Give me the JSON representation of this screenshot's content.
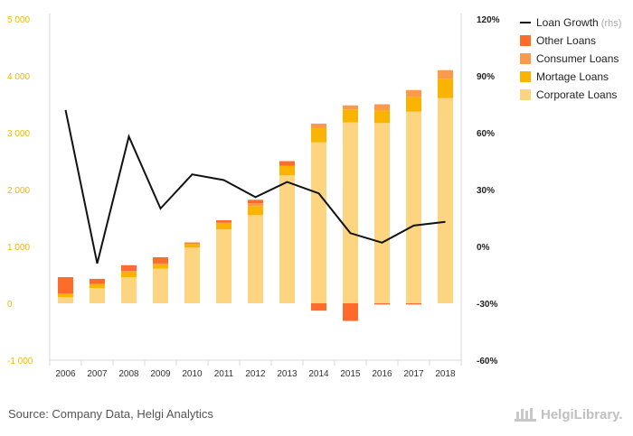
{
  "chart_data": {
    "type": "bar",
    "stacked": true,
    "categories": [
      "2006",
      "2007",
      "2008",
      "2009",
      "2010",
      "2011",
      "2012",
      "2013",
      "2014",
      "2015",
      "2016",
      "2017",
      "2018"
    ],
    "series": [
      {
        "name": "Corporate Loans",
        "axis": "left",
        "color": "#fdd580",
        "values": [
          110,
          270,
          460,
          610,
          980,
          1300,
          1550,
          2250,
          2830,
          3180,
          3170,
          3370,
          3610
        ]
      },
      {
        "name": "Mortage Loans",
        "axis": "left",
        "color": "#fab400",
        "values": [
          60,
          70,
          80,
          70,
          60,
          100,
          160,
          170,
          250,
          230,
          220,
          260,
          340
        ]
      },
      {
        "name": "Consumer Loans",
        "axis": "left",
        "color": "#fb9a4b",
        "values": [
          0,
          0,
          30,
          20,
          10,
          20,
          50,
          0,
          80,
          70,
          110,
          120,
          150
        ]
      },
      {
        "name": "Other Loans",
        "axis": "left",
        "color": "#fd6c2b",
        "values": [
          290,
          90,
          100,
          110,
          20,
          40,
          60,
          80,
          -130,
          -310,
          -20,
          -20,
          0
        ]
      },
      {
        "name": "Loan Growth",
        "note": "(rhs)",
        "type": "line",
        "axis": "right",
        "color": "#111111",
        "values": [
          72,
          -9,
          58,
          20,
          38,
          35,
          26,
          34,
          28,
          7,
          2,
          11,
          13
        ]
      }
    ],
    "y_left": {
      "ticks": [
        -1000,
        0,
        1000,
        2000,
        3000,
        4000,
        5000
      ],
      "tick_labels": [
        "-1 000",
        "0",
        "1 000",
        "2 000",
        "3 000",
        "4 000",
        "5 000"
      ],
      "ylim": [
        -1000,
        5000
      ]
    },
    "y_right": {
      "ticks": [
        -60,
        -30,
        0,
        30,
        60,
        90,
        120
      ],
      "tick_labels": [
        "-60%",
        "-30%",
        "0%",
        "30%",
        "60%",
        "90%",
        "120%"
      ],
      "ylim": [
        -60,
        120
      ]
    },
    "grid": false,
    "legend_position": "top-right",
    "legend_order": [
      "Loan Growth",
      "Other Loans",
      "Consumer Loans",
      "Mortage Loans",
      "Corporate Loans"
    ]
  },
  "source": "Source: Company Data, Helgi Analytics",
  "brand": {
    "name": "HelgiLibrary."
  }
}
